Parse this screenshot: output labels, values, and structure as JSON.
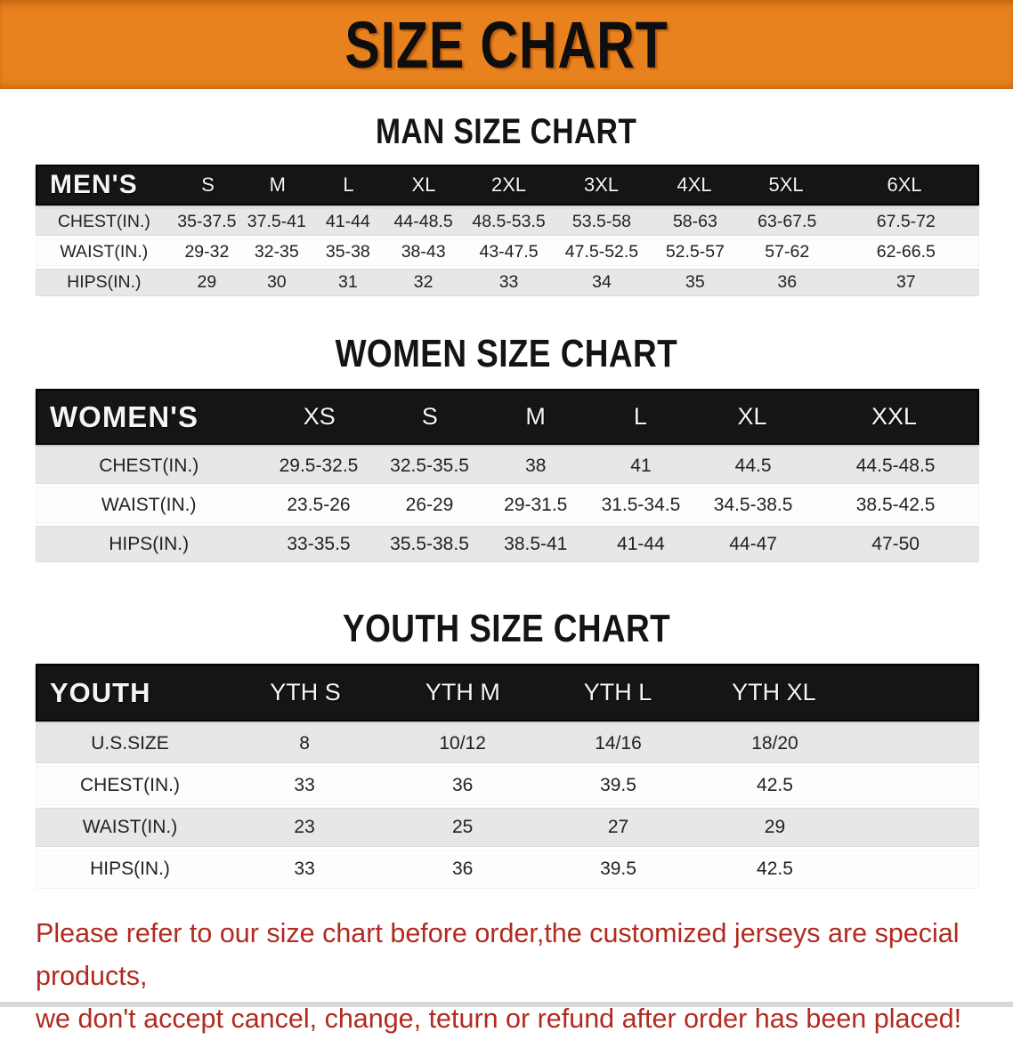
{
  "banner": {
    "title": "SIZE CHART",
    "bg_color": "#E8821E",
    "text_color": "#0E0E0E"
  },
  "colors": {
    "header_bar": "#151515",
    "row_gray": "#E7E7E5",
    "row_white": "#FDFDFD",
    "note_red": "#B22A20"
  },
  "sections": {
    "men": {
      "heading": "MAN SIZE CHART",
      "header": {
        "label": "MEN'S",
        "sizes": [
          "S",
          "M",
          "L",
          "XL",
          "2XL",
          "3XL",
          "4XL",
          "5XL",
          "6XL"
        ]
      },
      "rows": [
        {
          "label": "CHEST(IN.)",
          "values": [
            "35-37.5",
            "37.5-41",
            "41-44",
            "44-48.5",
            "48.5-53.5",
            "53.5-58",
            "58-63",
            "63-67.5",
            "67.5-72"
          ]
        },
        {
          "label": "WAIST(IN.)",
          "values": [
            "29-32",
            "32-35",
            "35-38",
            "38-43",
            "43-47.5",
            "47.5-52.5",
            "52.5-57",
            "57-62",
            "62-66.5"
          ]
        },
        {
          "label": "HIPS(IN.)",
          "values": [
            "29",
            "30",
            "31",
            "32",
            "33",
            "34",
            "35",
            "36",
            "37"
          ]
        }
      ]
    },
    "women": {
      "heading": "WOMEN SIZE CHART",
      "header": {
        "label": "WOMEN'S",
        "sizes": [
          "XS",
          "S",
          "M",
          "L",
          "XL",
          "XXL"
        ]
      },
      "rows": [
        {
          "label": "CHEST(IN.)",
          "values": [
            "29.5-32.5",
            "32.5-35.5",
            "38",
            "41",
            "44.5",
            "44.5-48.5"
          ]
        },
        {
          "label": "WAIST(IN.)",
          "values": [
            "23.5-26",
            "26-29",
            "29-31.5",
            "31.5-34.5",
            "34.5-38.5",
            "38.5-42.5"
          ]
        },
        {
          "label": "HIPS(IN.)",
          "values": [
            "33-35.5",
            "35.5-38.5",
            "38.5-41",
            "41-44",
            "44-47",
            "47-50"
          ]
        }
      ]
    },
    "youth": {
      "heading": "YOUTH SIZE CHART",
      "header": {
        "label": "YOUTH",
        "sizes": [
          "YTH S",
          "YTH M",
          "YTH L",
          "YTH XL"
        ]
      },
      "rows": [
        {
          "label": "U.S.SIZE",
          "values": [
            "8",
            "10/12",
            "14/16",
            "18/20"
          ]
        },
        {
          "label": "CHEST(IN.)",
          "values": [
            "33",
            "36",
            "39.5",
            "42.5"
          ]
        },
        {
          "label": "WAIST(IN.)",
          "values": [
            "23",
            "25",
            "27",
            "29"
          ]
        },
        {
          "label": "HIPS(IN.)",
          "values": [
            "33",
            "36",
            "39.5",
            "42.5"
          ]
        }
      ]
    }
  },
  "note": {
    "line1": "Please refer to our size chart before order,the customized jerseys are special products,",
    "line2": "we don't accept cancel, change, teturn or refund after order has been placed!"
  }
}
